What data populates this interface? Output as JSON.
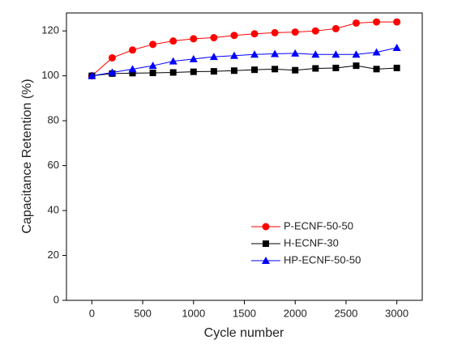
{
  "chart_data": {
    "type": "line",
    "x_label": "Cycle number",
    "y_label": "Capacitance Retention (%)",
    "xlim": [
      -250,
      3250
    ],
    "xticks": [
      0,
      500,
      1000,
      1500,
      2000,
      2500,
      3000
    ],
    "ylim": [
      0,
      128
    ],
    "yticks": [
      0,
      20,
      40,
      60,
      80,
      100,
      120
    ],
    "legend": "lower-right",
    "x": [
      0,
      200,
      400,
      600,
      800,
      1000,
      1200,
      1400,
      1600,
      1800,
      2000,
      2200,
      2400,
      2600,
      2800,
      3000
    ],
    "series": [
      {
        "name": "P-ECNF-50-50",
        "color": "#ff0000",
        "marker": "circle",
        "values": [
          100,
          108,
          111.5,
          114,
          115.5,
          116.5,
          117,
          118,
          118.7,
          119.2,
          119.5,
          120,
          121,
          123.5,
          124,
          124
        ]
      },
      {
        "name": "H-ECNF-30",
        "color": "#000000",
        "marker": "square",
        "values": [
          100,
          101,
          101.2,
          101.3,
          101.5,
          101.8,
          102,
          102.3,
          102.7,
          103,
          102.5,
          103.3,
          103.5,
          104.5,
          103,
          103.5
        ]
      },
      {
        "name": "HP-ECNF-50-50",
        "color": "#0000ff",
        "marker": "triangle",
        "values": [
          100,
          101.5,
          103,
          104.5,
          106.5,
          107.5,
          108.5,
          109,
          109.5,
          109.8,
          110,
          109.5,
          109.5,
          109.5,
          110.5,
          112.5
        ]
      }
    ]
  }
}
